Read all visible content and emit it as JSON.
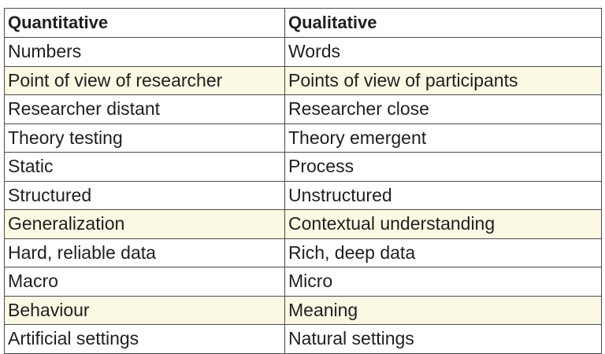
{
  "table": {
    "headers": [
      "Quantitative",
      "Qualitative"
    ],
    "rows": [
      {
        "quantitative": "Numbers",
        "qualitative": "Words",
        "highlight": false
      },
      {
        "quantitative": "Point of view of researcher",
        "qualitative": "Points of view of participants",
        "highlight": true
      },
      {
        "quantitative": "Researcher distant",
        "qualitative": "Researcher close",
        "highlight": false
      },
      {
        "quantitative": "Theory testing",
        "qualitative": "Theory emergent",
        "highlight": false
      },
      {
        "quantitative": "Static",
        "qualitative": "Process",
        "highlight": false
      },
      {
        "quantitative": "Structured",
        "qualitative": "Unstructured",
        "highlight": false
      },
      {
        "quantitative": "Generalization",
        "qualitative": "Contextual understanding",
        "highlight": true
      },
      {
        "quantitative": "Hard, reliable data",
        "qualitative": "Rich, deep data",
        "highlight": false
      },
      {
        "quantitative": "Macro",
        "qualitative": "Micro",
        "highlight": false
      },
      {
        "quantitative": "Behaviour",
        "qualitative": "Meaning",
        "highlight": true
      },
      {
        "quantitative": "Artificial settings",
        "qualitative": "Natural settings",
        "highlight": false
      }
    ],
    "colors": {
      "highlight_row": "#fbf8e4",
      "border": "#4a4a4a",
      "text": "#1f1f1f"
    }
  }
}
